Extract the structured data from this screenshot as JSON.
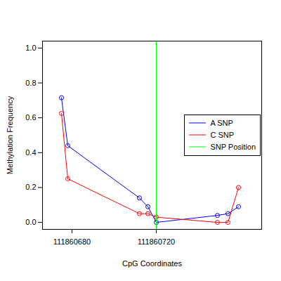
{
  "chart_data": {
    "type": "line",
    "x_label": "CpG Coordinates",
    "y_label": "Methylation Frequency",
    "xlim": [
      111860666,
      111860770
    ],
    "xticks": [
      111860680,
      111860720
    ],
    "ylim": [
      -0.04,
      1.04
    ],
    "yticks": [
      {
        "value": 0,
        "label": "0.0"
      },
      {
        "value": 0.2,
        "label": "0.2"
      },
      {
        "value": 0.4,
        "label": "0.4"
      },
      {
        "value": 0.6,
        "label": "0.6"
      },
      {
        "value": 0.8,
        "label": "0.8"
      },
      {
        "value": 1,
        "label": "1.0"
      }
    ],
    "x": [
      111860675,
      111860678,
      111860712,
      111860716,
      111860720,
      111860749,
      111860754,
      111860759
    ],
    "series": [
      {
        "name": "A SNP",
        "color": "#0000ff",
        "marker": "circle-open",
        "values": [
          0.715,
          0.44,
          0.14,
          0.09,
          0.0,
          0.04,
          0.05,
          0.09
        ]
      },
      {
        "name": "C SNP",
        "color": "#ff0000",
        "marker": "circle-open",
        "values": [
          0.625,
          0.25,
          0.05,
          0.05,
          0.03,
          0.0,
          0.0,
          0.2
        ]
      },
      {
        "name": "SNP Position",
        "color": "#00ff00",
        "type": "rule",
        "x": 111860720
      }
    ],
    "legend": "right",
    "grid": false
  }
}
